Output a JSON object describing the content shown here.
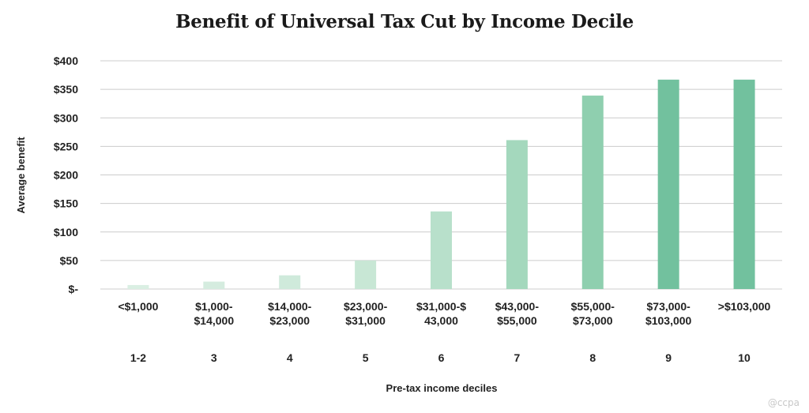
{
  "chart_data": {
    "type": "bar",
    "title": "Benefit of Universal Tax Cut by Income Decile",
    "xlabel": "Pre-tax income deciles",
    "ylabel": "Average benefit",
    "ylim": [
      0,
      400
    ],
    "yticks": [
      "$-",
      "$50",
      "$100",
      "$150",
      "$200",
      "$250",
      "$300",
      "$350",
      "$400"
    ],
    "grid": true,
    "categories": [
      [
        "<$1,000"
      ],
      [
        "$1,000-",
        "$14,000"
      ],
      [
        "$14,000-",
        "$23,000"
      ],
      [
        "$23,000-",
        "$31,000"
      ],
      [
        "$31,000-$",
        "43,000"
      ],
      [
        "$43,000-",
        "$55,000"
      ],
      [
        "$55,000-",
        "$73,000"
      ],
      [
        "$73,000-",
        "$103,000"
      ],
      [
        ">$103,000"
      ]
    ],
    "deciles": [
      "1-2",
      "3",
      "4",
      "5",
      "6",
      "7",
      "8",
      "9",
      "10"
    ],
    "values": [
      7,
      13,
      24,
      50,
      136,
      261,
      339,
      367,
      367
    ],
    "colors": [
      "#daefe3",
      "#d5ecdf",
      "#cfeadb",
      "#c8e7d5",
      "#b8e0cb",
      "#a4d8bd",
      "#8fcfaf",
      "#72c19e",
      "#72c19e"
    ]
  },
  "watermark": "@ccpa"
}
